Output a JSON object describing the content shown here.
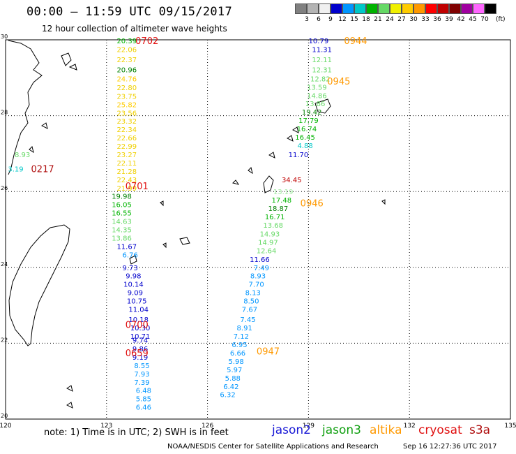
{
  "header": {
    "title": "00:00 — 11:59 UTC 09/15/2017",
    "subtitle": "12 hour collection of altimeter wave heights"
  },
  "legend": {
    "colors": [
      "#808080",
      "#b4b4b4",
      "#f0f0f0",
      "#0000cc",
      "#0096ff",
      "#00c8c8",
      "#00b400",
      "#66d966",
      "#f0f000",
      "#ffcc00",
      "#ff9900",
      "#ff0000",
      "#c00000",
      "#800000",
      "#a000a0",
      "#ff66ff",
      "#000000"
    ],
    "labels": [
      "3",
      "6",
      "9",
      "12",
      "15",
      "18",
      "21",
      "24",
      "27",
      "30",
      "33",
      "36",
      "39",
      "42",
      "45",
      "70"
    ],
    "unit": "(ft)"
  },
  "footer": {
    "note": "note: 1) Time is in UTC; 2) SWH is in feet",
    "missions": [
      {
        "name": "jason2",
        "color": "#1a1ad6"
      },
      {
        "name": "jason3",
        "color": "#12a012"
      },
      {
        "name": "altika",
        "color": "#ff9900"
      },
      {
        "name": "cryosat",
        "color": "#e01010"
      },
      {
        "name": "s3a",
        "color": "#b01010"
      }
    ],
    "credit": "NOAA/NESDIS Center for Satellite Applications and Research",
    "stamp": "Sep 16 12:27:36 UTC 2017"
  },
  "chart_data": {
    "type": "map",
    "xlim": [
      120,
      135
    ],
    "ylim": [
      20,
      30
    ],
    "x_ticks": [
      "120",
      "123",
      "126",
      "129",
      "132",
      "135"
    ],
    "y_ticks": [
      "20",
      "22",
      "24",
      "26",
      "28",
      "30"
    ],
    "track_times": [
      {
        "label": "0702",
        "lon": 124.2,
        "lat": 29.98,
        "color": "#e01010"
      },
      {
        "label": "0701",
        "lon": 123.9,
        "lat": 26.15,
        "color": "#e01010"
      },
      {
        "label": "0700",
        "lon": 123.9,
        "lat": 22.5,
        "color": "#e01010"
      },
      {
        "label": "0659",
        "lon": 123.9,
        "lat": 21.75,
        "color": "#e01010"
      },
      {
        "label": "0217",
        "lon": 121.1,
        "lat": 26.6,
        "color": "#b01010"
      },
      {
        "label": "0944",
        "lon": 130.4,
        "lat": 29.98,
        "color": "#ff9900"
      },
      {
        "label": "0945",
        "lon": 129.9,
        "lat": 28.91,
        "color": "#ff9900"
      },
      {
        "label": "0946",
        "lon": 129.1,
        "lat": 25.7,
        "color": "#ff9900"
      },
      {
        "label": "0947",
        "lon": 127.8,
        "lat": 21.8,
        "color": "#ff9900"
      }
    ],
    "points": [
      {
        "v": "20.39",
        "lon": 123.6,
        "lat": 29.98,
        "c": "#00b400"
      },
      {
        "v": "22.06",
        "lon": 123.6,
        "lat": 29.75,
        "c": "#f0d000"
      },
      {
        "v": "22.37",
        "lon": 123.6,
        "lat": 29.48,
        "c": "#f0d000"
      },
      {
        "v": "20.96",
        "lon": 123.6,
        "lat": 29.22,
        "c": "#008000"
      },
      {
        "v": "24.76",
        "lon": 123.6,
        "lat": 28.98,
        "c": "#ffcc00"
      },
      {
        "v": "22.80",
        "lon": 123.6,
        "lat": 28.75,
        "c": "#f0d000"
      },
      {
        "v": "23.75",
        "lon": 123.6,
        "lat": 28.52,
        "c": "#f0d000"
      },
      {
        "v": "25.82",
        "lon": 123.6,
        "lat": 28.3,
        "c": "#ffcc00"
      },
      {
        "v": "23.56",
        "lon": 123.6,
        "lat": 28.08,
        "c": "#f0d000"
      },
      {
        "v": "23.32",
        "lon": 123.6,
        "lat": 27.86,
        "c": "#f0d000"
      },
      {
        "v": "22.34",
        "lon": 123.6,
        "lat": 27.64,
        "c": "#f0d000"
      },
      {
        "v": "22.66",
        "lon": 123.6,
        "lat": 27.42,
        "c": "#f0d000"
      },
      {
        "v": "22.99",
        "lon": 123.6,
        "lat": 27.2,
        "c": "#f0d000"
      },
      {
        "v": "23.27",
        "lon": 123.6,
        "lat": 26.98,
        "c": "#f0d000"
      },
      {
        "v": "22.11",
        "lon": 123.6,
        "lat": 26.76,
        "c": "#f0d000"
      },
      {
        "v": "21.28",
        "lon": 123.6,
        "lat": 26.54,
        "c": "#f0d000"
      },
      {
        "v": "22.43",
        "lon": 123.6,
        "lat": 26.32,
        "c": "#f0d000"
      },
      {
        "v": "21.99",
        "lon": 123.6,
        "lat": 26.1,
        "c": "#f0d000"
      },
      {
        "v": "19.98",
        "lon": 123.45,
        "lat": 25.88,
        "c": "#008000"
      },
      {
        "v": "16.05",
        "lon": 123.45,
        "lat": 25.66,
        "c": "#00b400"
      },
      {
        "v": "16.55",
        "lon": 123.45,
        "lat": 25.44,
        "c": "#00b400"
      },
      {
        "v": "14.63",
        "lon": 123.45,
        "lat": 25.22,
        "c": "#66d966"
      },
      {
        "v": "14.35",
        "lon": 123.45,
        "lat": 25.0,
        "c": "#66d966"
      },
      {
        "v": "13.86",
        "lon": 123.45,
        "lat": 24.78,
        "c": "#66d966"
      },
      {
        "v": "11.67",
        "lon": 123.6,
        "lat": 24.56,
        "c": "#0000cc"
      },
      {
        "v": "6.76",
        "lon": 123.7,
        "lat": 24.34,
        "c": "#0096ff"
      },
      {
        "v": "9.73",
        "lon": 123.7,
        "lat": 24.0,
        "c": "#0000cc"
      },
      {
        "v": "9.98",
        "lon": 123.8,
        "lat": 23.78,
        "c": "#0000cc"
      },
      {
        "v": "10.14",
        "lon": 123.8,
        "lat": 23.56,
        "c": "#0000cc"
      },
      {
        "v": "9.09",
        "lon": 123.85,
        "lat": 23.34,
        "c": "#0000cc"
      },
      {
        "v": "10.75",
        "lon": 123.9,
        "lat": 23.12,
        "c": "#0000cc"
      },
      {
        "v": "11.04",
        "lon": 123.95,
        "lat": 22.9,
        "c": "#0000cc"
      },
      {
        "v": "10.18",
        "lon": 123.95,
        "lat": 22.63,
        "c": "#0000cc"
      },
      {
        "v": "10.30",
        "lon": 124.0,
        "lat": 22.41,
        "c": "#0000cc"
      },
      {
        "v": "10.71",
        "lon": 124.0,
        "lat": 22.19,
        "c": "#0000cc"
      },
      {
        "v": "9.74",
        "lon": 124.0,
        "lat": 22.09,
        "c": "#0000cc"
      },
      {
        "v": "9.86",
        "lon": 124.0,
        "lat": 21.86,
        "c": "#0000cc"
      },
      {
        "v": "9.19",
        "lon": 124.0,
        "lat": 21.64,
        "c": "#0000cc"
      },
      {
        "v": "8.55",
        "lon": 124.05,
        "lat": 21.42,
        "c": "#0096ff"
      },
      {
        "v": "7.93",
        "lon": 124.05,
        "lat": 21.2,
        "c": "#0096ff"
      },
      {
        "v": "7.39",
        "lon": 124.05,
        "lat": 20.98,
        "c": "#0096ff"
      },
      {
        "v": "6.48",
        "lon": 124.1,
        "lat": 20.76,
        "c": "#0096ff"
      },
      {
        "v": "5.85",
        "lon": 124.1,
        "lat": 20.54,
        "c": "#0096ff"
      },
      {
        "v": "6.46",
        "lon": 124.1,
        "lat": 20.32,
        "c": "#0096ff"
      },
      {
        "v": "10.79",
        "lon": 129.3,
        "lat": 29.98,
        "c": "#0000cc"
      },
      {
        "v": "11.31",
        "lon": 129.4,
        "lat": 29.75,
        "c": "#0000cc"
      },
      {
        "v": "12.11",
        "lon": 129.4,
        "lat": 29.48,
        "c": "#66d966"
      },
      {
        "v": "12.31",
        "lon": 129.4,
        "lat": 29.22,
        "c": "#66d966"
      },
      {
        "v": "12.82",
        "lon": 129.35,
        "lat": 28.98,
        "c": "#66d966"
      },
      {
        "v": "13.59",
        "lon": 129.25,
        "lat": 28.76,
        "c": "#66d966"
      },
      {
        "v": "14.86",
        "lon": 129.25,
        "lat": 28.54,
        "c": "#66d966"
      },
      {
        "v": "13.86",
        "lon": 129.2,
        "lat": 28.32,
        "c": "#66d966"
      },
      {
        "v": "19.42",
        "lon": 129.1,
        "lat": 28.1,
        "c": "#008000"
      },
      {
        "v": "17.79",
        "lon": 129.0,
        "lat": 27.88,
        "c": "#00b400"
      },
      {
        "v": "16.74",
        "lon": 128.95,
        "lat": 27.66,
        "c": "#00b400"
      },
      {
        "v": "16.45",
        "lon": 128.9,
        "lat": 27.44,
        "c": "#00b400"
      },
      {
        "v": "4.88",
        "lon": 128.9,
        "lat": 27.22,
        "c": "#00c8c8"
      },
      {
        "v": "11.70",
        "lon": 128.7,
        "lat": 26.98,
        "c": "#0000cc"
      },
      {
        "v": "34.45",
        "lon": 128.5,
        "lat": 26.32,
        "c": "#c00000"
      },
      {
        "v": "13.19",
        "lon": 128.25,
        "lat": 26.0,
        "c": "#a0e8a0"
      },
      {
        "v": "17.48",
        "lon": 128.2,
        "lat": 25.78,
        "c": "#00b400"
      },
      {
        "v": "18.87",
        "lon": 128.1,
        "lat": 25.56,
        "c": "#008000"
      },
      {
        "v": "16.71",
        "lon": 128.0,
        "lat": 25.34,
        "c": "#00b400"
      },
      {
        "v": "13.68",
        "lon": 127.95,
        "lat": 25.12,
        "c": "#66d966"
      },
      {
        "v": "14.93",
        "lon": 127.85,
        "lat": 24.89,
        "c": "#66d966"
      },
      {
        "v": "14.97",
        "lon": 127.8,
        "lat": 24.67,
        "c": "#66d966"
      },
      {
        "v": "12.64",
        "lon": 127.75,
        "lat": 24.45,
        "c": "#66d966"
      },
      {
        "v": "11.66",
        "lon": 127.55,
        "lat": 24.22,
        "c": "#0000cc"
      },
      {
        "v": "7.49",
        "lon": 127.6,
        "lat": 24.0,
        "c": "#0096ff"
      },
      {
        "v": "8.93",
        "lon": 127.5,
        "lat": 23.78,
        "c": "#0096ff"
      },
      {
        "v": "7.70",
        "lon": 127.45,
        "lat": 23.56,
        "c": "#0096ff"
      },
      {
        "v": "8.13",
        "lon": 127.35,
        "lat": 23.34,
        "c": "#0096ff"
      },
      {
        "v": "8.50",
        "lon": 127.3,
        "lat": 23.12,
        "c": "#0096ff"
      },
      {
        "v": "7.67",
        "lon": 127.25,
        "lat": 22.9,
        "c": "#0096ff"
      },
      {
        "v": "7.45",
        "lon": 127.2,
        "lat": 22.63,
        "c": "#0096ff"
      },
      {
        "v": "8.91",
        "lon": 127.1,
        "lat": 22.41,
        "c": "#0096ff"
      },
      {
        "v": "7.12",
        "lon": 127.0,
        "lat": 22.19,
        "c": "#0096ff"
      },
      {
        "v": "6.95",
        "lon": 126.95,
        "lat": 21.97,
        "c": "#0096ff"
      },
      {
        "v": "6.66",
        "lon": 126.9,
        "lat": 21.75,
        "c": "#0096ff"
      },
      {
        "v": "5.98",
        "lon": 126.85,
        "lat": 21.53,
        "c": "#0096ff"
      },
      {
        "v": "5.97",
        "lon": 126.8,
        "lat": 21.31,
        "c": "#0096ff"
      },
      {
        "v": "5.88",
        "lon": 126.75,
        "lat": 21.09,
        "c": "#0096ff"
      },
      {
        "v": "6.42",
        "lon": 126.7,
        "lat": 20.87,
        "c": "#0096ff"
      },
      {
        "v": "6.32",
        "lon": 126.6,
        "lat": 20.65,
        "c": "#0096ff"
      },
      {
        "v": "8.93",
        "lon": 120.5,
        "lat": 26.98,
        "c": "#66d966"
      },
      {
        "v": "3.19",
        "lon": 120.3,
        "lat": 26.6,
        "c": "#00c8c8"
      }
    ]
  }
}
